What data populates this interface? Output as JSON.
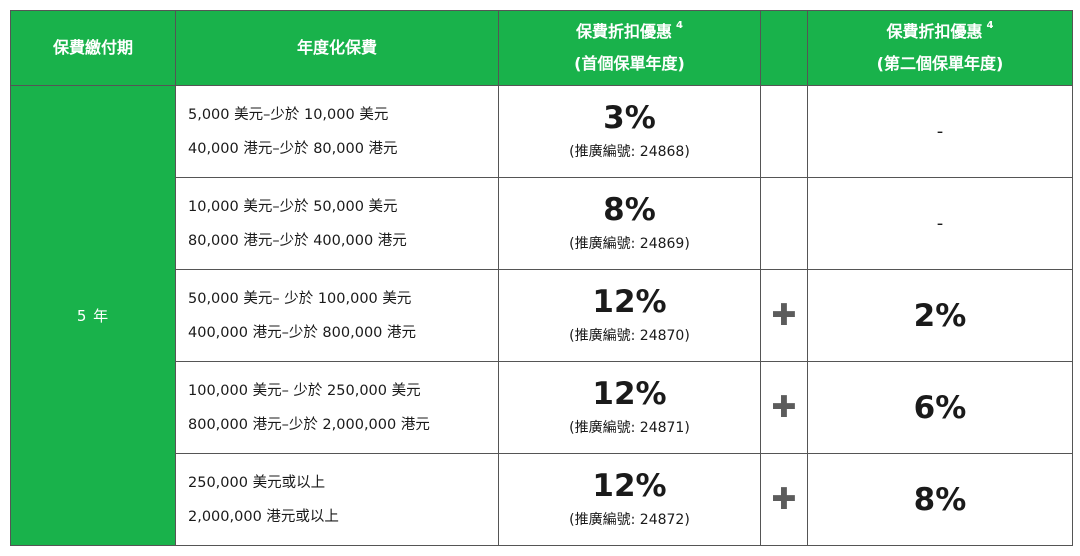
{
  "header": {
    "col1": "保費繳付期",
    "col2": "年度化保費",
    "col3_line1": "保費折扣優惠",
    "col3_sup": "4",
    "col3_line2": "(首個保單年度)",
    "col5_line1": "保費折扣優惠",
    "col5_sup": "4",
    "col5_line2": "(第二個保單年度)"
  },
  "period": "5 年",
  "rows": [
    {
      "range_usd": "5,000 美元–少於 10,000 美元",
      "range_hkd": "40,000 港元–少於 80,000 港元",
      "discount": "3%",
      "code": "(推廣編號: 24868)",
      "plus": "",
      "second": "-"
    },
    {
      "range_usd": "10,000 美元–少於 50,000 美元",
      "range_hkd": "80,000 港元–少於 400,000 港元",
      "discount": "8%",
      "code": "(推廣編號: 24869)",
      "plus": "",
      "second": "-"
    },
    {
      "range_usd": "50,000 美元– 少於 100,000 美元",
      "range_hkd": "400,000 港元–少於 800,000 港元",
      "discount": "12%",
      "code": "(推廣編號: 24870)",
      "plus": "✚",
      "second": "2%"
    },
    {
      "range_usd": "100,000 美元– 少於 250,000 美元",
      "range_hkd": "800,000 港元–少於 2,000,000 港元",
      "discount": "12%",
      "code": "(推廣編號: 24871)",
      "plus": "✚",
      "second": "6%"
    },
    {
      "range_usd": "250,000 美元或以上",
      "range_hkd": "2,000,000 港元或以上",
      "discount": "12%",
      "code": "(推廣編號: 24872)",
      "plus": "✚",
      "second": "8%"
    }
  ],
  "colors": {
    "header_green": "#19b24b",
    "plus_gray": "#5c5c5c"
  }
}
